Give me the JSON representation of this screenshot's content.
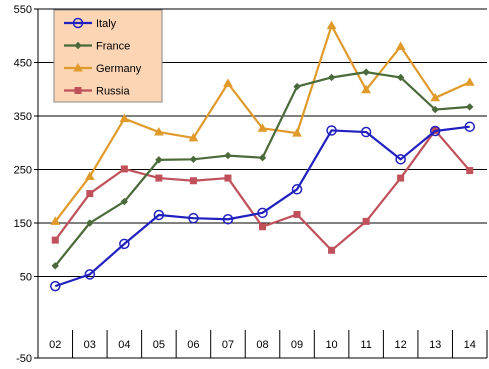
{
  "chart_data": {
    "type": "line",
    "title": "",
    "xlabel": "",
    "ylabel": "",
    "categories": [
      "02",
      "03",
      "04",
      "05",
      "06",
      "07",
      "08",
      "09",
      "10",
      "11",
      "12",
      "13",
      "14"
    ],
    "ylim": [
      -50,
      550
    ],
    "yticks": [
      -50,
      50,
      150,
      250,
      350,
      450,
      550
    ],
    "ytick_labels": [
      "-50",
      "50",
      "150",
      "250",
      "350",
      "450",
      "550"
    ],
    "grid": true,
    "legend": "top-left",
    "series": [
      {
        "name": "Italy",
        "color": "#2020c0",
        "marker": "circle",
        "values": [
          32,
          54,
          111,
          165,
          159,
          157,
          169,
          213,
          323,
          320,
          269,
          322,
          330
        ]
      },
      {
        "name": "France",
        "color": "#4a6a3a",
        "marker": "diamond",
        "values": [
          70,
          150,
          190,
          268,
          269,
          276,
          272,
          405,
          422,
          432,
          422,
          362,
          367
        ]
      },
      {
        "name": "Germany",
        "color": "#e09a2a",
        "marker": "triangle",
        "values": [
          153,
          237,
          345,
          320,
          309,
          411,
          327,
          318,
          519,
          399,
          480,
          384,
          413
        ]
      },
      {
        "name": "Russia",
        "color": "#c0505a",
        "marker": "square",
        "values": [
          118,
          205,
          251,
          234,
          229,
          234,
          143,
          166,
          99,
          153,
          234,
          323,
          248
        ]
      }
    ],
    "colors": {
      "legend_bg": "#fcd5b5",
      "grid": "#000000",
      "axis": "#000000"
    }
  }
}
